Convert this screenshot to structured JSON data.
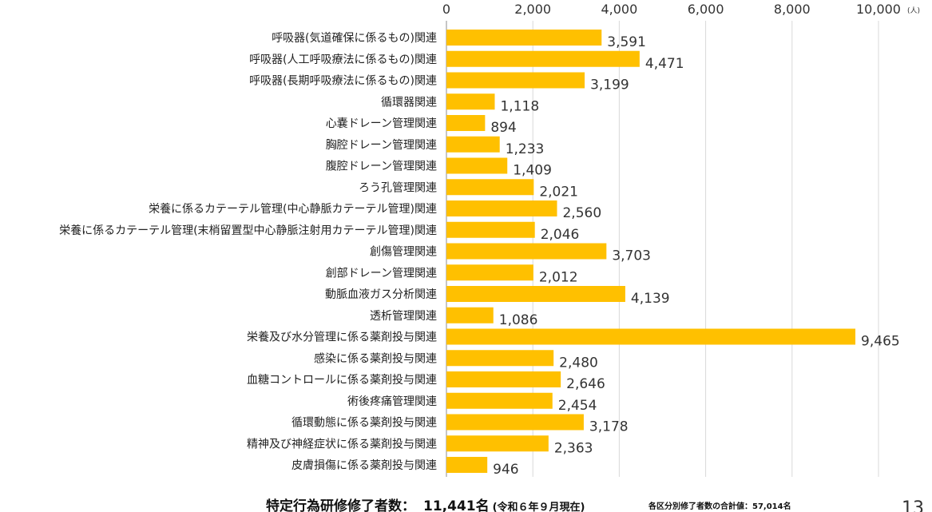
{
  "chart_data": {
    "type": "bar",
    "orientation": "horizontal",
    "unit": "(人)",
    "xlim": [
      0,
      10000
    ],
    "ticks": [
      "0",
      "2,000",
      "4,000",
      "6,000",
      "8,000",
      "10,000"
    ],
    "tick_values": [
      0,
      2000,
      4000,
      6000,
      8000,
      10000
    ],
    "grid": true,
    "bar_color": "#FFC000",
    "categories": [
      "呼吸器(気道確保に係るもの)関連",
      "呼吸器(人工呼吸療法に係るもの)関連",
      "呼吸器(長期呼吸療法に係るもの)関連",
      "循環器関連",
      "心嚢ドレーン管理関連",
      "胸腔ドレーン管理関連",
      "腹腔ドレーン管理関連",
      "ろう孔管理関連",
      "栄養に係るカテーテル管理(中心静脈カテーテル管理)関連",
      "栄養に係るカテーテル管理(末梢留置型中心静脈注射用カテーテル管理)関連",
      "創傷管理関連",
      "創部ドレーン管理関連",
      "動脈血液ガス分析関連",
      "透析管理関連",
      "栄養及び水分管理に係る薬剤投与関連",
      "感染に係る薬剤投与関連",
      "血糖コントロールに係る薬剤投与関連",
      "術後疼痛管理関連",
      "循環動態に係る薬剤投与関連",
      "精神及び神経症状に係る薬剤投与関連",
      "皮膚損傷に係る薬剤投与関連"
    ],
    "values": [
      3591,
      4471,
      3199,
      1118,
      894,
      1233,
      1409,
      2021,
      2560,
      2046,
      3703,
      2012,
      4139,
      1086,
      9465,
      2480,
      2646,
      2454,
      3178,
      2363,
      946
    ],
    "value_labels": [
      "3,591",
      "4,471",
      "3,199",
      "1,118",
      "894",
      "1,233",
      "1,409",
      "2,021",
      "2,560",
      "2,046",
      "3,703",
      "2,012",
      "4,139",
      "1,086",
      "9,465",
      "2,480",
      "2,646",
      "2,454",
      "3,178",
      "2,363",
      "946"
    ]
  },
  "footer": {
    "main_label": "特定行為研修修了者数：",
    "main_value": "11,441名",
    "main_note": "(令和６年９月現在)",
    "total_text": "各区分別修了者数の合計値：57,014名",
    "page_number": "13"
  }
}
